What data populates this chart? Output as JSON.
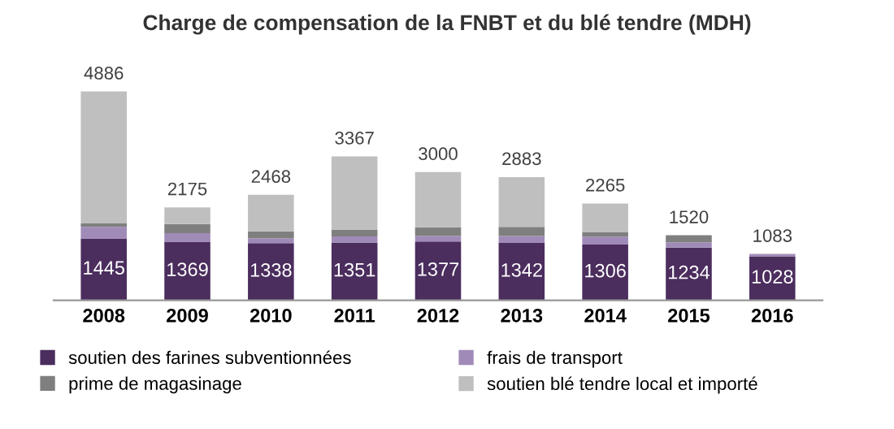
{
  "chart_data": {
    "type": "bar",
    "stacked": true,
    "title": "Charge de compensation de la FNBT et du blé tendre (MDH)",
    "categories": [
      "2008",
      "2009",
      "2010",
      "2011",
      "2012",
      "2013",
      "2014",
      "2015",
      "2016"
    ],
    "series": [
      {
        "name": "soutien des farines subventionnées",
        "color": "#4b2d5e",
        "values": [
          1445,
          1369,
          1338,
          1351,
          1377,
          1342,
          1306,
          1234,
          1028
        ],
        "value_labels": [
          "1445",
          "1369",
          "1338",
          "1351",
          "1377",
          "1342",
          "1306",
          "1234",
          "1028"
        ]
      },
      {
        "name": "frais de transport",
        "color": "#a08bb8",
        "values": [
          270,
          200,
          115,
          145,
          130,
          160,
          185,
          120,
          55
        ]
      },
      {
        "name": "prime de magasinage",
        "color": "#7f7f7f",
        "values": [
          85,
          215,
          160,
          160,
          200,
          215,
          100,
          166,
          0
        ]
      },
      {
        "name": "soutien blé tendre local et importé",
        "color": "#bfbfbf",
        "values": [
          3086,
          391,
          855,
          1711,
          1293,
          1166,
          674,
          null,
          0
        ]
      }
    ],
    "totals": [
      "4886",
      "2175",
      "2468",
      "3367",
      "3000",
      "2883",
      "2265",
      "1520",
      "1083"
    ],
    "legend": "bottom"
  }
}
